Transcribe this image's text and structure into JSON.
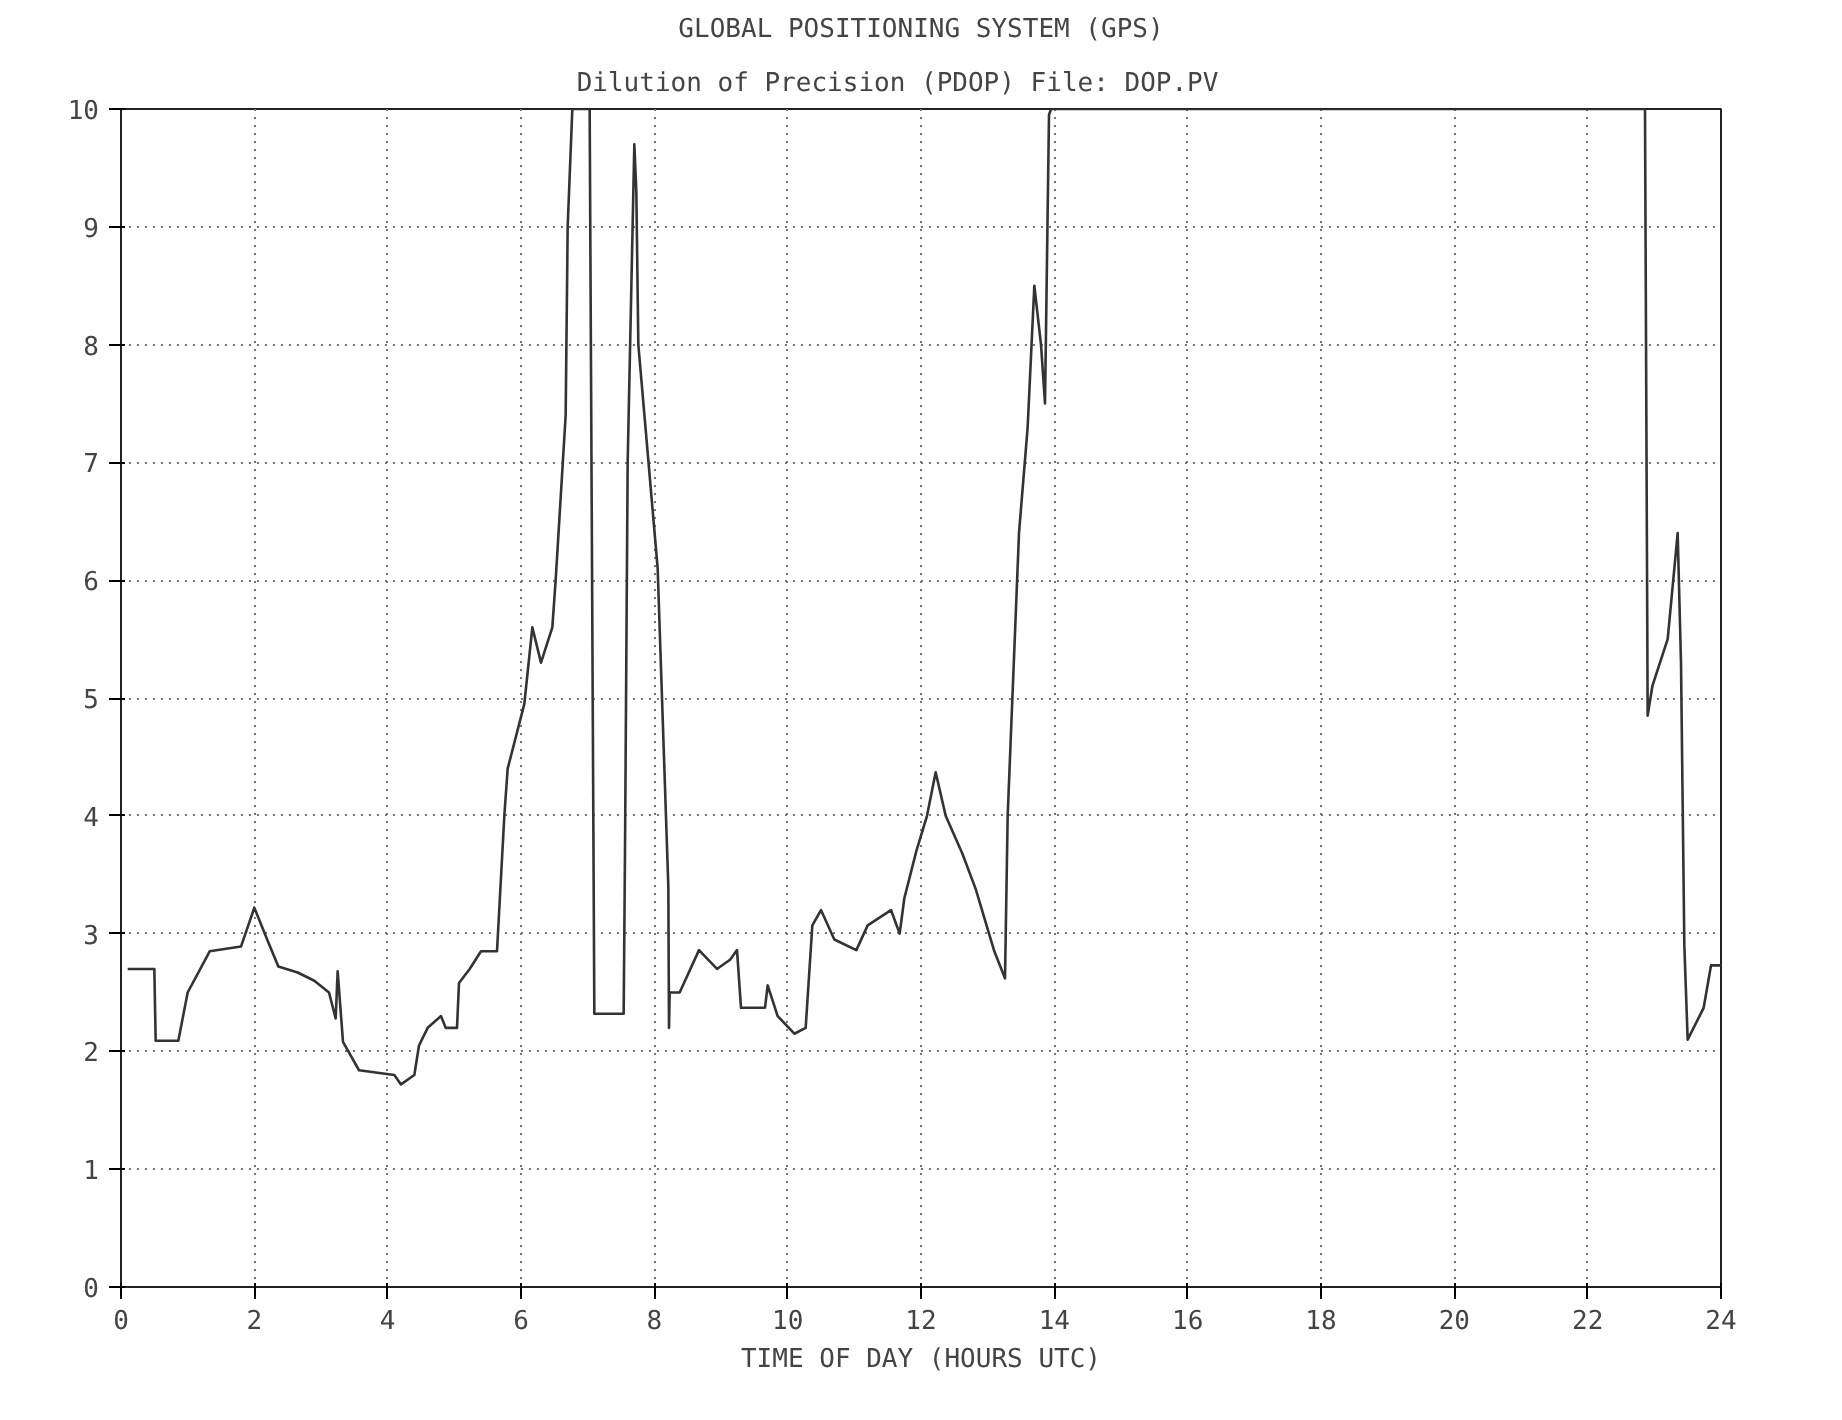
{
  "chart_data": {
    "type": "line",
    "title": "GLOBAL POSITIONING SYSTEM (GPS)",
    "subtitle": "Dilution of Precision (PDOP)    File: DOP.PV",
    "xlabel": "TIME OF DAY (HOURS UTC)",
    "xlim": [
      0,
      24
    ],
    "ylim": [
      0,
      10
    ],
    "xticks": [
      0,
      2,
      4,
      6,
      8,
      10,
      12,
      14,
      16,
      18,
      20,
      22,
      24
    ],
    "yticks": [
      0,
      1,
      2,
      3,
      4,
      5,
      6,
      7,
      8,
      9,
      10
    ],
    "grid": true,
    "marker": "none",
    "line_style": "solid",
    "series": [
      {
        "color": "#333333",
        "x": [
          0.1,
          0.5,
          0.52,
          0.86,
          1.0,
          1.33,
          1.8,
          2.0,
          2.2,
          2.36,
          2.65,
          2.9,
          3.12,
          3.22,
          3.25,
          3.33,
          3.57,
          4.1,
          4.2,
          4.4,
          4.47,
          4.6,
          4.8,
          4.87,
          5.04,
          5.07,
          5.23,
          5.4,
          5.64,
          5.75,
          5.8,
          6.05,
          6.17,
          6.3,
          6.47,
          6.52,
          6.67,
          6.7,
          6.77,
          7.03,
          7.1,
          7.54,
          7.56,
          7.6,
          7.7,
          7.73,
          7.76,
          8.05,
          8.21,
          8.22,
          8.23,
          8.38,
          8.67,
          8.94,
          9.14,
          9.24,
          9.3,
          9.66,
          9.7,
          9.85,
          10.1,
          10.27,
          10.37,
          10.5,
          10.7,
          11.03,
          11.2,
          11.55,
          11.68,
          11.75,
          11.93,
          12.09,
          12.22,
          12.37,
          12.62,
          12.82,
          13.1,
          13.26,
          13.3,
          13.47,
          13.6,
          13.7,
          13.8,
          13.86,
          13.92,
          13.95,
          22.86,
          22.9,
          22.97,
          23.2,
          23.35,
          23.4,
          23.45,
          23.5,
          23.74,
          23.85,
          24.0
        ],
        "values": [
          2.7,
          2.7,
          2.09,
          2.09,
          2.5,
          2.85,
          2.89,
          3.22,
          2.94,
          2.72,
          2.67,
          2.6,
          2.5,
          2.28,
          2.68,
          2.08,
          1.84,
          1.8,
          1.72,
          1.8,
          2.05,
          2.2,
          2.3,
          2.2,
          2.2,
          2.58,
          2.7,
          2.85,
          2.85,
          4.0,
          4.4,
          4.95,
          5.6,
          5.3,
          5.6,
          6.0,
          7.4,
          9.0,
          10.0,
          10.0,
          2.32,
          2.32,
          3.7,
          7.0,
          9.7,
          9.3,
          8.0,
          6.1,
          3.4,
          2.2,
          2.5,
          2.5,
          2.86,
          2.7,
          2.78,
          2.86,
          2.37,
          2.37,
          2.56,
          2.3,
          2.15,
          2.2,
          3.07,
          3.2,
          2.95,
          2.86,
          3.07,
          3.2,
          3.0,
          3.3,
          3.7,
          4.0,
          4.37,
          4.0,
          3.68,
          3.38,
          2.85,
          2.62,
          4.0,
          6.4,
          7.3,
          8.5,
          8.0,
          7.5,
          9.95,
          10.0,
          10.0,
          4.85,
          5.1,
          5.5,
          6.4,
          5.3,
          2.9,
          2.1,
          2.37,
          2.73,
          2.73
        ]
      }
    ]
  }
}
